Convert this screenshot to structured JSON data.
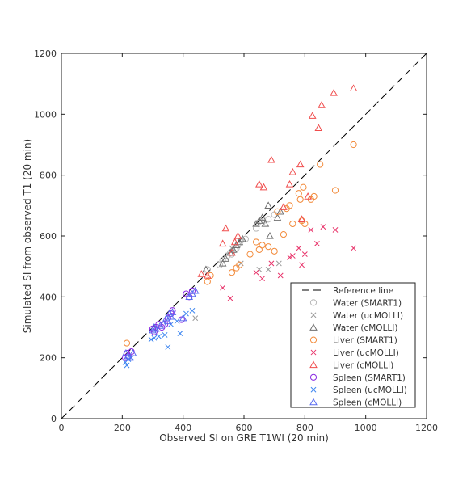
{
  "chart_data": {
    "type": "scatter",
    "title": "",
    "xlabel": "Observed SI on GRE T1WI (20 min)",
    "ylabel": "Simulated SI from observed T1 (20 min)",
    "xlim": [
      0,
      1200
    ],
    "ylim": [
      0,
      1200
    ],
    "xticks": [
      "0",
      "200",
      "400",
      "600",
      "800",
      "1000",
      "1200"
    ],
    "yticks": [
      "0",
      "200",
      "400",
      "600",
      "800",
      "1000",
      "1200"
    ],
    "grid": false,
    "legend_position": "bottom-right",
    "reference_line": {
      "name": "Reference line",
      "style": "dashed",
      "color": "#000000",
      "x": [
        0,
        1200
      ],
      "y": [
        0,
        1200
      ]
    },
    "series": [
      {
        "name": "Water (SMART1)",
        "marker": "circle",
        "color": "#b8b8b8",
        "points": [
          [
            480,
            490
          ],
          [
            520,
            505
          ],
          [
            530,
            520
          ],
          [
            545,
            535
          ],
          [
            555,
            545
          ],
          [
            560,
            540
          ],
          [
            570,
            555
          ],
          [
            575,
            560
          ],
          [
            580,
            570
          ],
          [
            590,
            585
          ],
          [
            605,
            590
          ],
          [
            640,
            625
          ],
          [
            660,
            645
          ],
          [
            680,
            655
          ],
          [
            700,
            670
          ]
        ]
      },
      {
        "name": "Water (ucMOLLI)",
        "marker": "x",
        "color": "#9a9a9a",
        "points": [
          [
            440,
            330
          ],
          [
            560,
            560
          ],
          [
            590,
            510
          ],
          [
            650,
            490
          ],
          [
            680,
            490
          ],
          [
            715,
            510
          ]
        ]
      },
      {
        "name": "Water (cMOLLI)",
        "marker": "triangle",
        "color": "#707070",
        "points": [
          [
            475,
            490
          ],
          [
            530,
            510
          ],
          [
            540,
            525
          ],
          [
            555,
            545
          ],
          [
            565,
            555
          ],
          [
            575,
            570
          ],
          [
            585,
            580
          ],
          [
            595,
            590
          ],
          [
            640,
            640
          ],
          [
            650,
            650
          ],
          [
            660,
            660
          ],
          [
            670,
            640
          ],
          [
            680,
            700
          ],
          [
            685,
            600
          ],
          [
            710,
            660
          ],
          [
            720,
            680
          ]
        ]
      },
      {
        "name": "Liver (SMART1)",
        "marker": "circle",
        "color": "#f28a3a",
        "points": [
          [
            215,
            248
          ],
          [
            480,
            450
          ],
          [
            490,
            470
          ],
          [
            560,
            480
          ],
          [
            575,
            495
          ],
          [
            585,
            505
          ],
          [
            620,
            540
          ],
          [
            640,
            580
          ],
          [
            650,
            555
          ],
          [
            660,
            570
          ],
          [
            680,
            565
          ],
          [
            700,
            550
          ],
          [
            710,
            680
          ],
          [
            730,
            605
          ],
          [
            740,
            690
          ],
          [
            750,
            700
          ],
          [
            760,
            640
          ],
          [
            780,
            740
          ],
          [
            785,
            720
          ],
          [
            790,
            650
          ],
          [
            795,
            760
          ],
          [
            800,
            640
          ],
          [
            820,
            720
          ],
          [
            830,
            730
          ],
          [
            850,
            835
          ],
          [
            900,
            750
          ],
          [
            960,
            900
          ]
        ]
      },
      {
        "name": "Liver (ucMOLLI)",
        "marker": "x",
        "color": "#e8336a",
        "points": [
          [
            530,
            430
          ],
          [
            555,
            395
          ],
          [
            640,
            480
          ],
          [
            660,
            460
          ],
          [
            690,
            510
          ],
          [
            720,
            470
          ],
          [
            750,
            530
          ],
          [
            760,
            535
          ],
          [
            780,
            560
          ],
          [
            790,
            505
          ],
          [
            800,
            540
          ],
          [
            820,
            620
          ],
          [
            840,
            575
          ],
          [
            860,
            630
          ],
          [
            900,
            620
          ],
          [
            960,
            560
          ]
        ]
      },
      {
        "name": "Liver (cMOLLI)",
        "marker": "triangle",
        "color": "#f04d4d",
        "points": [
          [
            460,
            475
          ],
          [
            480,
            470
          ],
          [
            530,
            575
          ],
          [
            540,
            625
          ],
          [
            560,
            545
          ],
          [
            570,
            580
          ],
          [
            580,
            600
          ],
          [
            650,
            770
          ],
          [
            665,
            760
          ],
          [
            690,
            850
          ],
          [
            730,
            695
          ],
          [
            750,
            770
          ],
          [
            760,
            810
          ],
          [
            785,
            835
          ],
          [
            790,
            655
          ],
          [
            810,
            730
          ],
          [
            825,
            995
          ],
          [
            845,
            955
          ],
          [
            855,
            1030
          ],
          [
            895,
            1070
          ],
          [
            960,
            1085
          ]
        ]
      },
      {
        "name": "Spleen (SMART1)",
        "marker": "circle",
        "color": "#8a2be2",
        "points": [
          [
            210,
            200
          ],
          [
            215,
            215
          ],
          [
            220,
            205
          ],
          [
            230,
            220
          ],
          [
            300,
            295
          ],
          [
            305,
            285
          ],
          [
            310,
            300
          ],
          [
            320,
            310
          ],
          [
            330,
            300
          ],
          [
            340,
            310
          ],
          [
            350,
            330
          ],
          [
            360,
            345
          ],
          [
            365,
            355
          ],
          [
            395,
            325
          ],
          [
            410,
            410
          ],
          [
            420,
            400
          ],
          [
            430,
            420
          ]
        ]
      },
      {
        "name": "Spleen (ucMOLLI)",
        "marker": "x",
        "color": "#3d86f0",
        "points": [
          [
            210,
            185
          ],
          [
            215,
            175
          ],
          [
            220,
            195
          ],
          [
            230,
            200
          ],
          [
            295,
            260
          ],
          [
            305,
            265
          ],
          [
            320,
            270
          ],
          [
            340,
            275
          ],
          [
            350,
            235
          ],
          [
            360,
            310
          ],
          [
            380,
            320
          ],
          [
            390,
            280
          ],
          [
            410,
            345
          ],
          [
            430,
            355
          ]
        ]
      },
      {
        "name": "Spleen (cMOLLI)",
        "marker": "triangle",
        "color": "#5a6cf0",
        "points": [
          [
            212,
            215
          ],
          [
            218,
            205
          ],
          [
            225,
            200
          ],
          [
            235,
            215
          ],
          [
            300,
            290
          ],
          [
            305,
            300
          ],
          [
            310,
            295
          ],
          [
            325,
            305
          ],
          [
            335,
            310
          ],
          [
            345,
            330
          ],
          [
            350,
            320
          ],
          [
            355,
            345
          ],
          [
            360,
            335
          ],
          [
            365,
            350
          ],
          [
            400,
            330
          ],
          [
            420,
            400
          ],
          [
            430,
            410
          ],
          [
            440,
            420
          ]
        ]
      }
    ]
  }
}
